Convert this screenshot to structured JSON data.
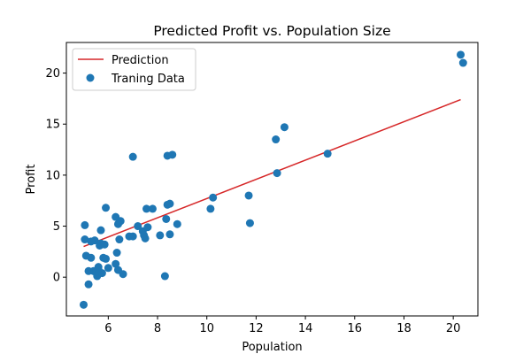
{
  "chart_data": {
    "type": "scatter",
    "title": "Predicted Profit vs. Population Size",
    "xlabel": "Population",
    "ylabel": "Profit",
    "xlim": [
      4.3,
      21.0
    ],
    "ylim": [
      -3.8,
      23.0
    ],
    "xticks": [
      6,
      8,
      10,
      12,
      14,
      16,
      18,
      20
    ],
    "yticks": [
      0,
      5,
      10,
      15,
      20
    ],
    "grid": false,
    "legend_position": "upper-left",
    "series": [
      {
        "name": "Prediction",
        "kind": "line",
        "color": "#d62728",
        "x": [
          5.0,
          20.3
        ],
        "y": [
          3.0,
          17.4
        ]
      },
      {
        "name": "Traning Data",
        "kind": "scatter",
        "color": "#1f77b4",
        "x": [
          5.0,
          5.05,
          5.05,
          5.1,
          5.2,
          5.3,
          5.4,
          5.45,
          5.5,
          5.55,
          5.6,
          5.65,
          5.7,
          5.7,
          5.75,
          5.8,
          5.85,
          5.9,
          6.0,
          6.3,
          6.35,
          6.4,
          6.4,
          6.45,
          6.5,
          6.6,
          6.85,
          7.0,
          7.2,
          7.4,
          7.45,
          7.5,
          7.55,
          7.6,
          7.8,
          8.1,
          8.3,
          8.35,
          8.4,
          8.5,
          8.5,
          8.6,
          8.8,
          10.15,
          10.25,
          11.7,
          11.75,
          12.8,
          12.85,
          13.15,
          14.9,
          20.3,
          20.4,
          5.9,
          7.0,
          5.2,
          5.3,
          5.6,
          6.3,
          8.4
        ],
        "y": [
          -2.7,
          5.1,
          3.7,
          2.1,
          -0.7,
          1.9,
          0.6,
          3.6,
          0.5,
          0.1,
          1.0,
          3.1,
          4.6,
          3.3,
          0.4,
          1.9,
          3.2,
          1.8,
          0.9,
          1.3,
          2.4,
          5.2,
          0.7,
          3.7,
          5.5,
          0.3,
          4.0,
          11.8,
          5.0,
          4.5,
          4.1,
          3.8,
          6.7,
          4.9,
          6.7,
          4.1,
          0.1,
          5.7,
          11.9,
          7.2,
          4.2,
          12.0,
          5.2,
          6.7,
          7.8,
          8.0,
          5.3,
          13.5,
          10.2,
          14.7,
          12.1,
          21.8,
          21.0,
          6.8,
          4.0,
          0.6,
          3.5,
          0.8,
          5.9,
          7.1
        ]
      }
    ]
  }
}
